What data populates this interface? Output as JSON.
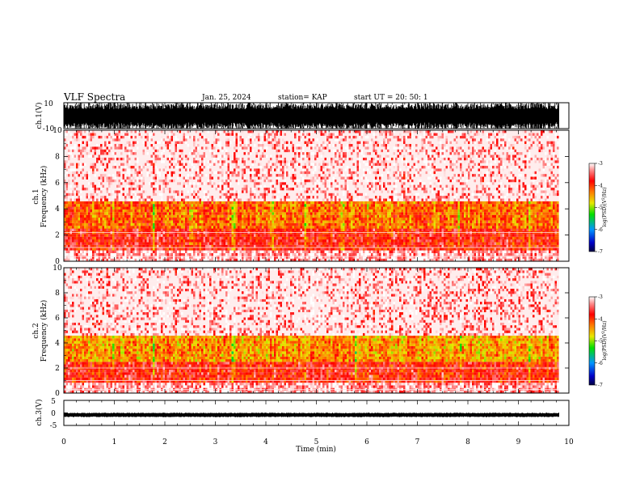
{
  "header": {
    "title": "VLF Spectra",
    "date": "Jan. 25, 2024",
    "station": "station= KAP",
    "start": "start  UT  =   20: 50: 1"
  },
  "colorbar_label_html": "log(PSD)(V²/Hz)",
  "chart_data": [
    {
      "type": "line",
      "panel": "ch1-waveform",
      "ylabel": "ch.1(V)",
      "ylim": [
        -10,
        10
      ],
      "yticks": [
        -10,
        10
      ],
      "xlim": [
        0,
        10
      ],
      "note": "Dense broadband waveform, saturating near ±10 V throughout 0–9.8 min"
    },
    {
      "type": "heatmap",
      "panel": "ch1-spectrogram",
      "ylabel": "ch.1\nFrequency (kHz)",
      "ylim": [
        0,
        10
      ],
      "yticks": [
        "0",
        "2",
        "4",
        "6",
        "8",
        "10"
      ],
      "xlim": [
        0,
        10
      ],
      "data_end_min": 9.8,
      "colorbar": {
        "label": "log(PSD)(V²/Hz)",
        "ticks": [
          "-3",
          "-4",
          "-5",
          "-6",
          "-7"
        ],
        "range": [
          -7,
          -3
        ]
      },
      "bands": [
        {
          "freq_khz": [
            0,
            0.9
          ],
          "log_psd": -3.2
        },
        {
          "freq_khz": [
            0.9,
            2.5
          ],
          "log_psd": -3.8
        },
        {
          "freq_khz": [
            2.5,
            4.5
          ],
          "log_psd": -4.2
        },
        {
          "freq_khz": [
            4.5,
            10
          ],
          "log_psd": -3.3
        }
      ],
      "features": {
        "horizontal_lines_khz": [
          2.2,
          1.05,
          0.35
        ],
        "broadband_impulses_min": [
          0.95,
          1.75,
          2.5,
          3.35,
          4.1,
          4.75,
          5.5,
          6.0,
          6.4,
          7.8,
          9.2
        ]
      }
    },
    {
      "type": "heatmap",
      "panel": "ch2-spectrogram",
      "ylabel": "ch.2\nFrequency (kHz)",
      "ylim": [
        0,
        10
      ],
      "yticks": [
        "0",
        "2",
        "4",
        "6",
        "8",
        "10"
      ],
      "xlim": [
        0,
        10
      ],
      "data_end_min": 9.8,
      "colorbar": {
        "label": "log(PSD)(V²/Hz)",
        "ticks": [
          "-3",
          "-4",
          "-5",
          "-6",
          "-7"
        ],
        "range": [
          -7,
          -3
        ]
      },
      "bands": [
        {
          "freq_khz": [
            0,
            0.8
          ],
          "log_psd": -3.2
        },
        {
          "freq_khz": [
            0.8,
            2.5
          ],
          "log_psd": -3.8
        },
        {
          "freq_khz": [
            2.5,
            4.5
          ],
          "log_psd": -4.4
        },
        {
          "freq_khz": [
            4.5,
            10
          ],
          "log_psd": -3.3
        }
      ],
      "features": {
        "horizontal_lines_khz": [
          2.0,
          1.0,
          0.3
        ],
        "broadband_impulses_min": [
          0.95,
          1.75,
          3.35,
          4.75,
          5.75,
          7.85,
          9.2
        ]
      }
    },
    {
      "type": "line",
      "panel": "ch3-waveform",
      "ylabel": "ch.3(V)",
      "ylim": [
        -5,
        5
      ],
      "yticks": [
        "5",
        "0",
        "-5"
      ],
      "xlim": [
        0,
        10
      ],
      "note": "Near-constant level about -0.8 V with small fluctuations, 0–9.8 min"
    }
  ],
  "x_axis": {
    "label": "Time  (min)",
    "ticks": [
      "0",
      "1",
      "2",
      "3",
      "4",
      "5",
      "6",
      "7",
      "8",
      "9",
      "10"
    ],
    "range": [
      0,
      10
    ]
  }
}
